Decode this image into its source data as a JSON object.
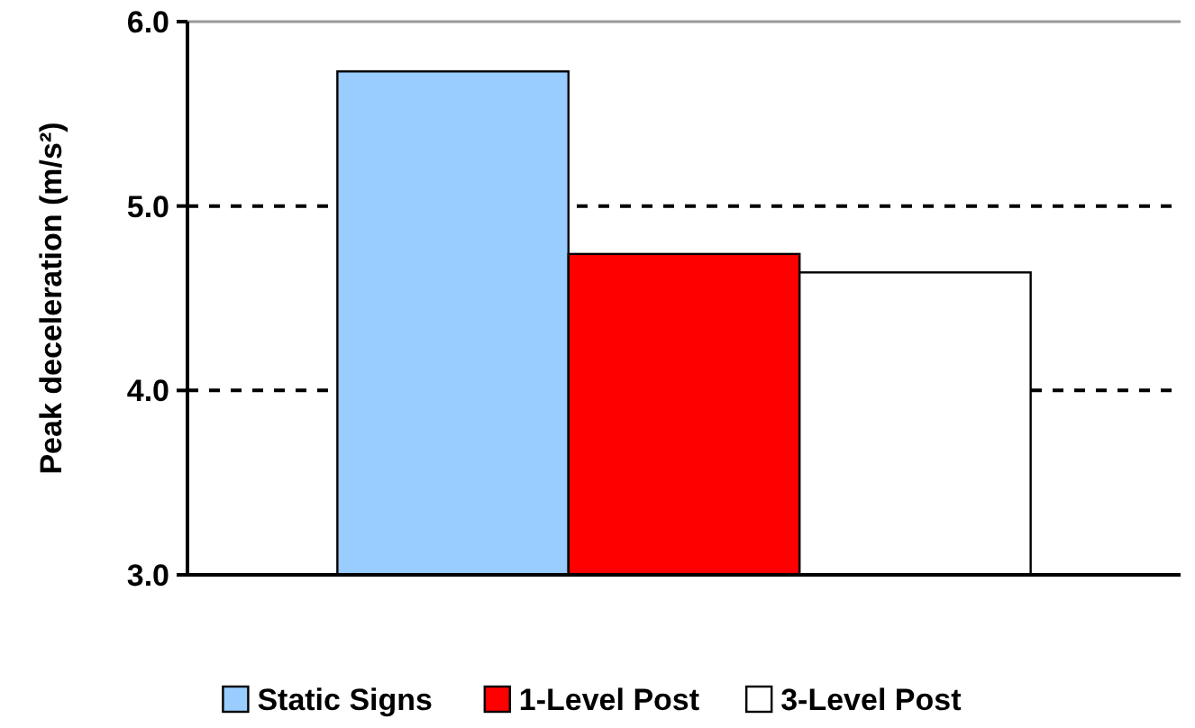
{
  "chart_data": {
    "type": "bar",
    "ylabel": "Peak deceleration (m/s²)",
    "categories": [
      null
    ],
    "series": [
      {
        "name": "Static Signs",
        "color": "#99ccff",
        "values": [
          5.73
        ]
      },
      {
        "name": "1-Level Post",
        "color": "#ff0000",
        "values": [
          4.74
        ]
      },
      {
        "name": "3-Level Post",
        "color": "#ffffff",
        "values": [
          4.64
        ]
      }
    ],
    "ylim": [
      3.0,
      6.0
    ],
    "yticks": [
      {
        "value": 3,
        "label": "3.0"
      },
      {
        "value": 4,
        "label": "4.0"
      },
      {
        "value": 5,
        "label": "5.0"
      },
      {
        "value": 6,
        "label": "6.0"
      }
    ],
    "grid": "y",
    "line_style": "dashed",
    "legend": "bottom"
  }
}
